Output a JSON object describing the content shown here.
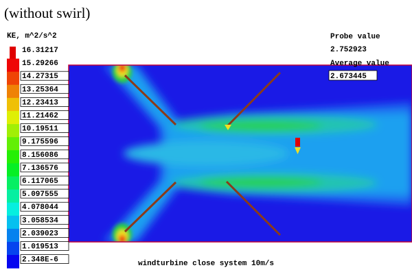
{
  "title": "(without swirl)",
  "legend": {
    "title": "KE, m^2/s^2",
    "labels": [
      "16.31217",
      "15.29266",
      "14.27315",
      "13.25364",
      "12.23413",
      "11.21462",
      "10.19511",
      "9.175596",
      "8.156086",
      "7.136576",
      "6.117065",
      "5.097555",
      "4.078044",
      "3.058534",
      "2.039023",
      "1.019513",
      "2.348E-6"
    ]
  },
  "probe": {
    "label": "Probe value",
    "value": "2.752923",
    "average_label": "Average value",
    "average_value": "2.673445"
  },
  "caption": "windturbine close system 10m/s"
}
